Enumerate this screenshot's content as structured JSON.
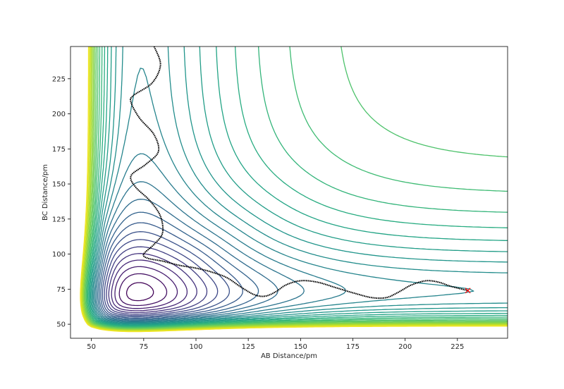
{
  "chart_data": {
    "type": "contour",
    "title": "",
    "xlabel": "AB Distance/pm",
    "ylabel": "BC Distance/pm",
    "xlim": [
      40,
      249
    ],
    "ylim": [
      40,
      248
    ],
    "x_ticks": [
      50,
      75,
      100,
      125,
      150,
      175,
      200,
      225
    ],
    "y_ticks": [
      50,
      75,
      100,
      125,
      150,
      175,
      200,
      225
    ],
    "colormap": "viridis",
    "contour_levels": 30,
    "colors": {
      "trajectory": "#000000",
      "endpoint_marker": "#ff0000",
      "axes": "#000000"
    },
    "trajectory": {
      "style": "dotted black line",
      "points": [
        [
          80,
          248
        ],
        [
          83,
          235
        ],
        [
          79,
          222
        ],
        [
          70,
          213
        ],
        [
          69,
          208
        ],
        [
          73,
          197
        ],
        [
          80,
          185
        ],
        [
          82,
          173
        ],
        [
          76,
          164
        ],
        [
          69,
          156
        ],
        [
          71,
          148
        ],
        [
          78,
          138
        ],
        [
          83,
          127
        ],
        [
          84,
          115
        ],
        [
          80,
          107
        ],
        [
          75,
          100
        ],
        [
          77,
          97
        ],
        [
          84,
          95
        ],
        [
          92,
          92
        ],
        [
          100,
          90
        ],
        [
          108,
          87
        ],
        [
          115,
          83
        ],
        [
          122,
          76
        ],
        [
          128,
          71
        ],
        [
          133,
          70
        ],
        [
          138,
          73
        ],
        [
          143,
          78
        ],
        [
          150,
          81
        ],
        [
          158,
          80
        ],
        [
          167,
          76
        ],
        [
          176,
          72
        ],
        [
          184,
          69
        ],
        [
          191,
          69
        ],
        [
          197,
          73
        ],
        [
          203,
          78
        ],
        [
          210,
          81
        ],
        [
          216,
          80
        ],
        [
          222,
          77
        ],
        [
          230,
          74
        ]
      ]
    },
    "endpoint": {
      "x": 230,
      "y": 74,
      "marker": "x"
    }
  }
}
